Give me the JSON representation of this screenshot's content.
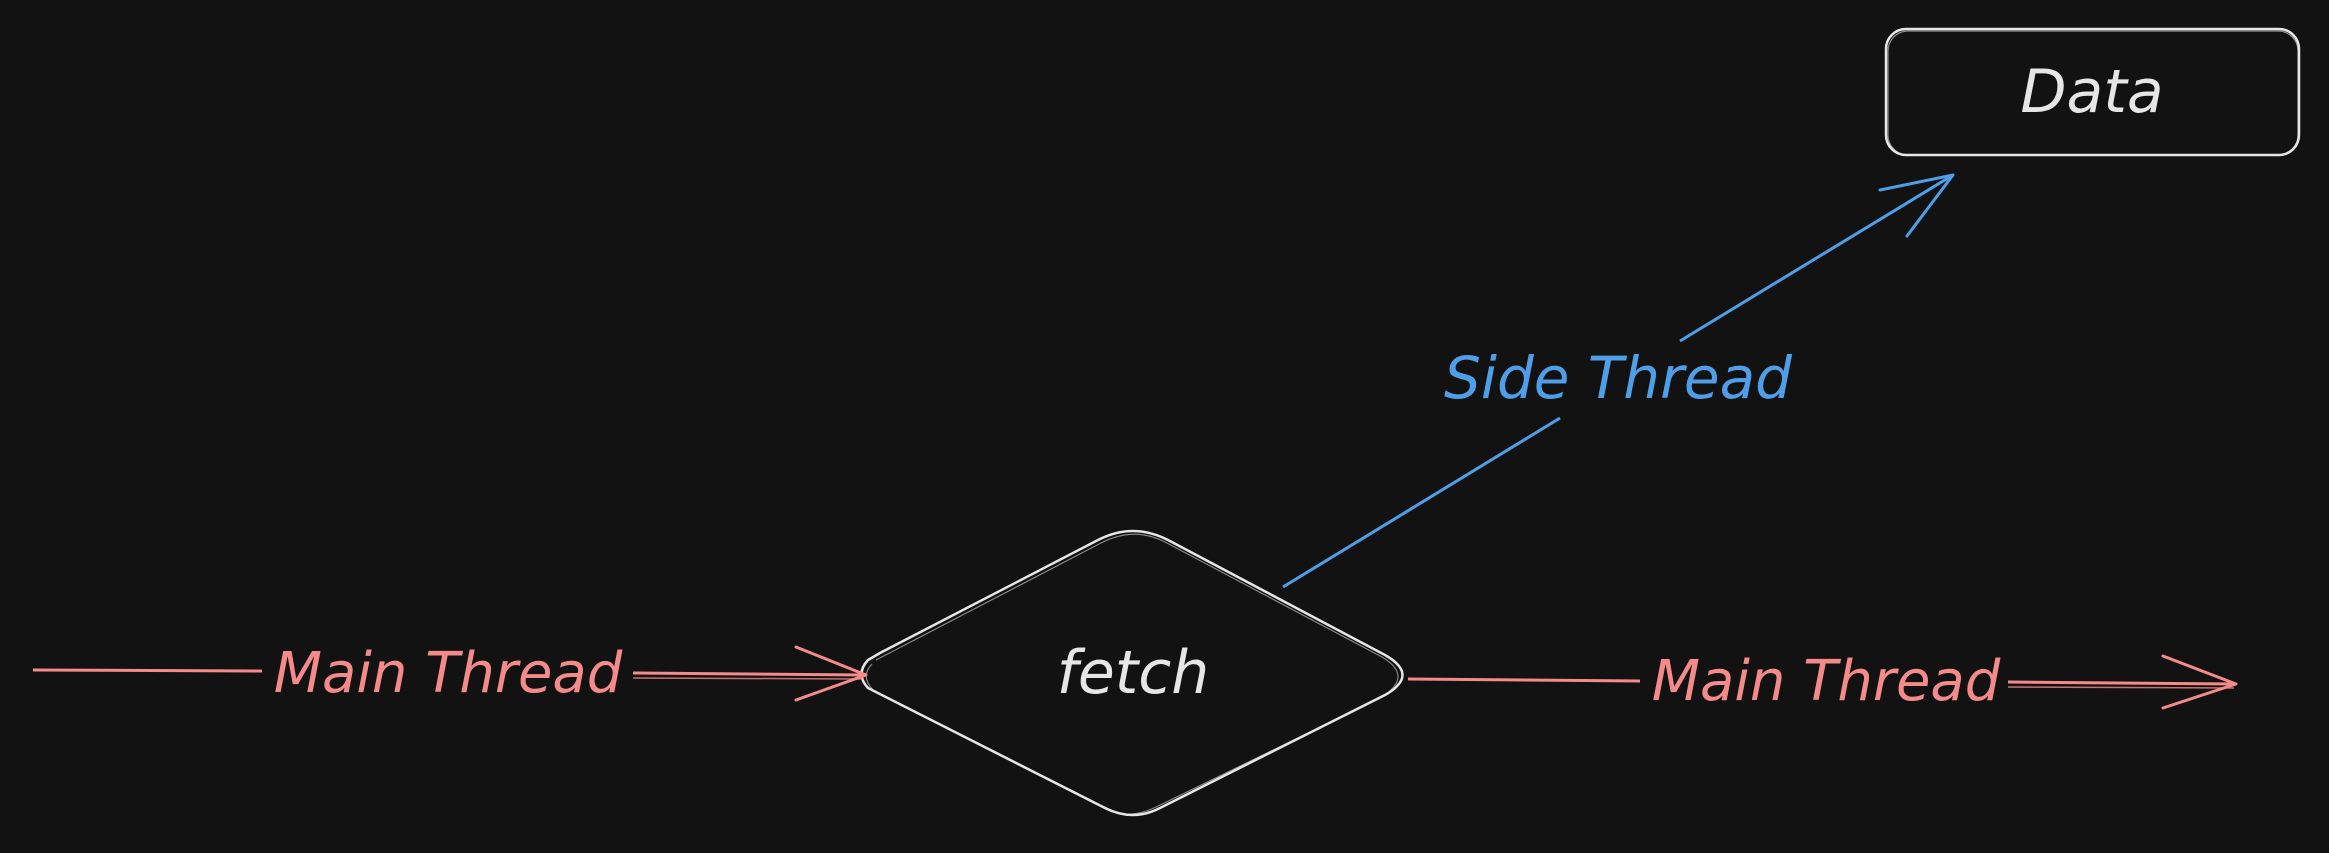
{
  "colors": {
    "background": "#121212",
    "main_thread": "#f48a8a",
    "side_thread": "#4f9ee8",
    "node_stroke": "#e6e6e6",
    "node_text": "#e6e6e6"
  },
  "nodes": {
    "fetch": {
      "label": "fetch"
    },
    "data": {
      "label": "Data"
    }
  },
  "edges": {
    "main_in": {
      "label": "Main Thread"
    },
    "main_out": {
      "label": "Main Thread"
    },
    "side": {
      "label": "Side Thread"
    }
  }
}
